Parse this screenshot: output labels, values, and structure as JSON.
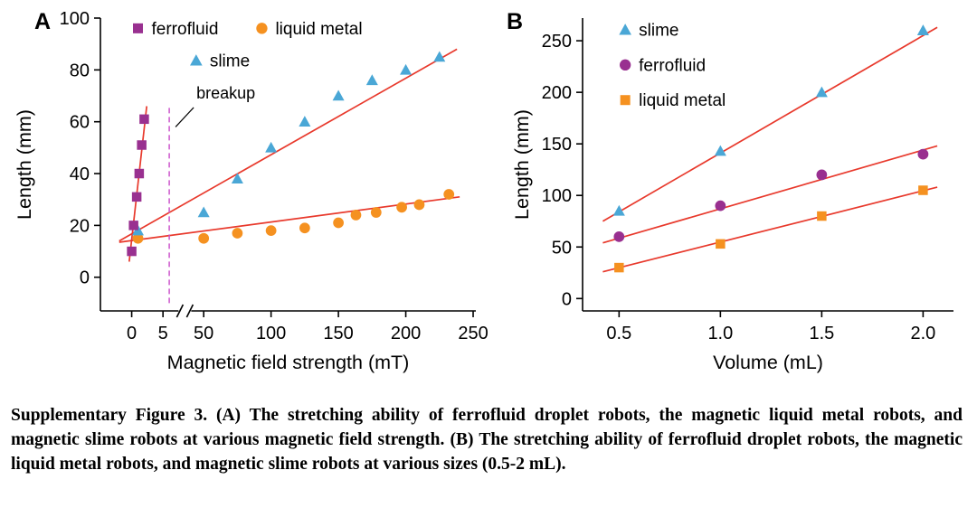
{
  "panels": {
    "a_label": "A",
    "b_label": "B"
  },
  "colors": {
    "ferrofluid": "#993090",
    "liquid_metal": "#f59120",
    "slime": "#4aa7d6",
    "fit_line": "#e8392c",
    "breakup_line": "#cc55cc",
    "axis": "#000000"
  },
  "caption": "Supplementary Figure 3. (A) The stretching ability of ferrofluid droplet robots, the magnetic liquid metal robots, and magnetic slime robots at various magnetic field strength. (B) The stretching ability of ferrofluid droplet robots, the magnetic liquid metal robots, and magnetic slime robots at various sizes (0.5-2 mL).",
  "chart_data": [
    {
      "id": "A",
      "type": "scatter",
      "title": "",
      "xlabel": "Magnetic field strength (mT)",
      "ylabel": "Length (mm)",
      "x_axis": {
        "broken": true,
        "segments": [
          {
            "domain": [
              -5,
              7
            ],
            "frac": [
              0.0,
              0.2
            ]
          },
          {
            "domain": [
              43,
              252
            ],
            "frac": [
              0.25,
              1.0
            ]
          }
        ],
        "break_frac": 0.225,
        "ticks": [
          {
            "v": 0,
            "label": "0"
          },
          {
            "v": 5,
            "label": "5"
          },
          {
            "v": 50,
            "label": "50"
          },
          {
            "v": 100,
            "label": "100"
          },
          {
            "v": 150,
            "label": "150"
          },
          {
            "v": 200,
            "label": "200"
          },
          {
            "v": 250,
            "label": "250"
          }
        ]
      },
      "y_axis": {
        "domain": [
          -13,
          100
        ],
        "ticks": [
          {
            "v": 0,
            "label": "0"
          },
          {
            "v": 20,
            "label": "20"
          },
          {
            "v": 40,
            "label": "40"
          },
          {
            "v": 60,
            "label": "60"
          },
          {
            "v": 80,
            "label": "80"
          },
          {
            "v": 100,
            "label": "100"
          }
        ]
      },
      "legend": [
        {
          "label": "ferrofluid",
          "marker": "square",
          "color": "ferrofluid",
          "fx": 0.1,
          "fy": 0.035
        },
        {
          "label": "liquid metal",
          "marker": "circle",
          "color": "liquid_metal",
          "fx": 0.43,
          "fy": 0.035
        },
        {
          "label": "slime",
          "marker": "triangle",
          "color": "slime",
          "fx": 0.255,
          "fy": 0.145
        }
      ],
      "series": [
        {
          "name": "liquid metal",
          "marker": "circle",
          "color": "liquid_metal",
          "points": [
            [
              1,
              15
            ],
            [
              50,
              15
            ],
            [
              75,
              17
            ],
            [
              100,
              18
            ],
            [
              125,
              19
            ],
            [
              150,
              21
            ],
            [
              163,
              24
            ],
            [
              178,
              25
            ],
            [
              197,
              27
            ],
            [
              210,
              28
            ],
            [
              232,
              32
            ]
          ]
        },
        {
          "name": "slime",
          "marker": "triangle",
          "color": "slime",
          "points": [
            [
              1,
              18
            ],
            [
              50,
              25
            ],
            [
              75,
              38
            ],
            [
              100,
              50
            ],
            [
              125,
              60
            ],
            [
              150,
              70
            ],
            [
              175,
              76
            ],
            [
              200,
              80
            ],
            [
              225,
              85
            ]
          ]
        },
        {
          "name": "ferrofluid",
          "marker": "square",
          "color": "ferrofluid",
          "points": [
            [
              0,
              10
            ],
            [
              0.3,
              20
            ],
            [
              0.8,
              31
            ],
            [
              1.2,
              40
            ],
            [
              1.6,
              51
            ],
            [
              2.0,
              61
            ]
          ]
        }
      ],
      "fit_lines": [
        {
          "points": [
            [
              -0.4,
              6
            ],
            [
              2.4,
              66
            ]
          ]
        },
        {
          "points": [
            [
              -2,
              13.5
            ],
            [
              240,
              31
            ]
          ]
        },
        {
          "points": [
            [
              -2,
              14
            ],
            [
              238,
              88
            ]
          ]
        }
      ],
      "annotation": {
        "label": "breakup",
        "line_x": 6,
        "line_y": [
          -10,
          66
        ],
        "label_y": 69
      }
    },
    {
      "id": "B",
      "type": "scatter",
      "title": "",
      "xlabel": "Volume (mL)",
      "ylabel": "Length (mm)",
      "x_axis": {
        "domain": [
          0.32,
          2.15
        ],
        "ticks": [
          {
            "v": 0.5,
            "label": "0.5"
          },
          {
            "v": 1.0,
            "label": "1.0"
          },
          {
            "v": 1.5,
            "label": "1.5"
          },
          {
            "v": 2.0,
            "label": "2.0"
          }
        ]
      },
      "y_axis": {
        "domain": [
          -12,
          272
        ],
        "ticks": [
          {
            "v": 0,
            "label": "0"
          },
          {
            "v": 50,
            "label": "50"
          },
          {
            "v": 100,
            "label": "100"
          },
          {
            "v": 150,
            "label": "150"
          },
          {
            "v": 200,
            "label": "200"
          },
          {
            "v": 250,
            "label": "250"
          }
        ]
      },
      "legend": [
        {
          "label": "slime",
          "marker": "triangle",
          "color": "slime",
          "fx": 0.115,
          "fy": 0.04
        },
        {
          "label": "ferrofluid",
          "marker": "circle",
          "color": "ferrofluid",
          "fx": 0.115,
          "fy": 0.16
        },
        {
          "label": "liquid metal",
          "marker": "square",
          "color": "liquid_metal",
          "fx": 0.115,
          "fy": 0.28
        }
      ],
      "series": [
        {
          "name": "slime",
          "marker": "triangle",
          "color": "slime",
          "points": [
            [
              0.5,
              85
            ],
            [
              1.0,
              143
            ],
            [
              1.5,
              200
            ],
            [
              2.0,
              260
            ]
          ]
        },
        {
          "name": "ferrofluid",
          "marker": "circle",
          "color": "ferrofluid",
          "points": [
            [
              0.5,
              60
            ],
            [
              1.0,
              90
            ],
            [
              1.5,
              120
            ],
            [
              2.0,
              140
            ]
          ]
        },
        {
          "name": "liquid metal",
          "marker": "square",
          "color": "liquid_metal",
          "points": [
            [
              0.5,
              30
            ],
            [
              1.0,
              53
            ],
            [
              1.5,
              80
            ],
            [
              2.0,
              105
            ]
          ]
        }
      ],
      "fit_lines": [
        {
          "points": [
            [
              0.42,
              75
            ],
            [
              2.07,
              263
            ]
          ]
        },
        {
          "points": [
            [
              0.42,
              54
            ],
            [
              2.07,
              148
            ]
          ]
        },
        {
          "points": [
            [
              0.42,
              26
            ],
            [
              2.07,
              108
            ]
          ]
        }
      ]
    }
  ]
}
